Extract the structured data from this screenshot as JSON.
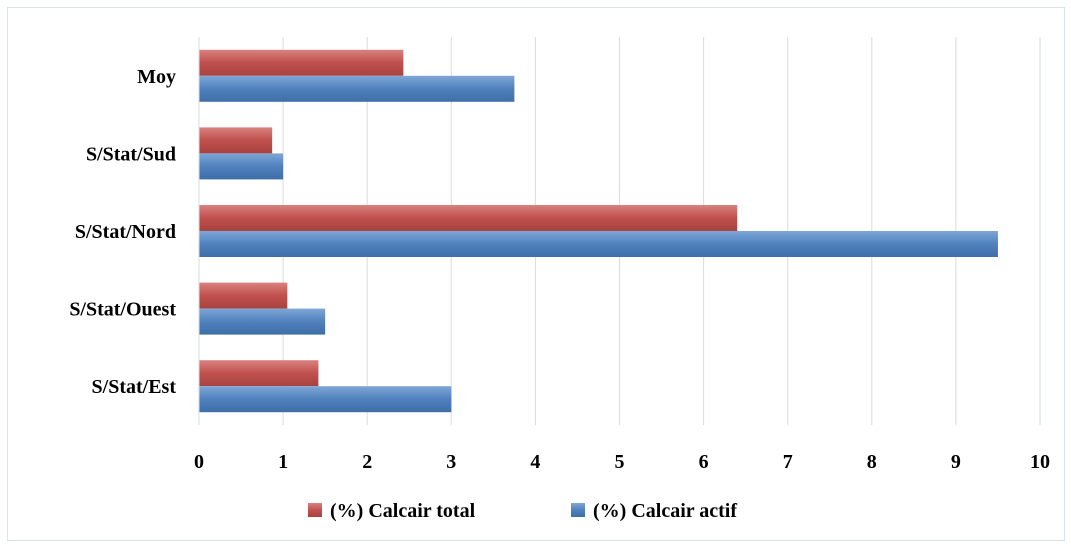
{
  "chart_data": {
    "type": "bar",
    "orientation": "horizontal",
    "categories": [
      "S/Stat/Est",
      "S/Stat/Ouest",
      "S/Stat/Nord",
      "S/Stat/Sud",
      "Moy"
    ],
    "series": [
      {
        "name": "(%) Calcair total",
        "color": "#c0504d",
        "values": [
          1.42,
          1.05,
          6.4,
          0.87,
          2.43
        ]
      },
      {
        "name": "(%) Calcair actif",
        "color": "#4f81bd",
        "values": [
          3.0,
          1.5,
          9.5,
          1.0,
          3.75
        ]
      }
    ],
    "xlim": [
      0,
      10
    ],
    "xticks": [
      0,
      1,
      2,
      3,
      4,
      5,
      6,
      7,
      8,
      9,
      10
    ],
    "title": "",
    "xlabel": "",
    "ylabel": "",
    "grid": "vertical",
    "legend_position": "bottom"
  }
}
